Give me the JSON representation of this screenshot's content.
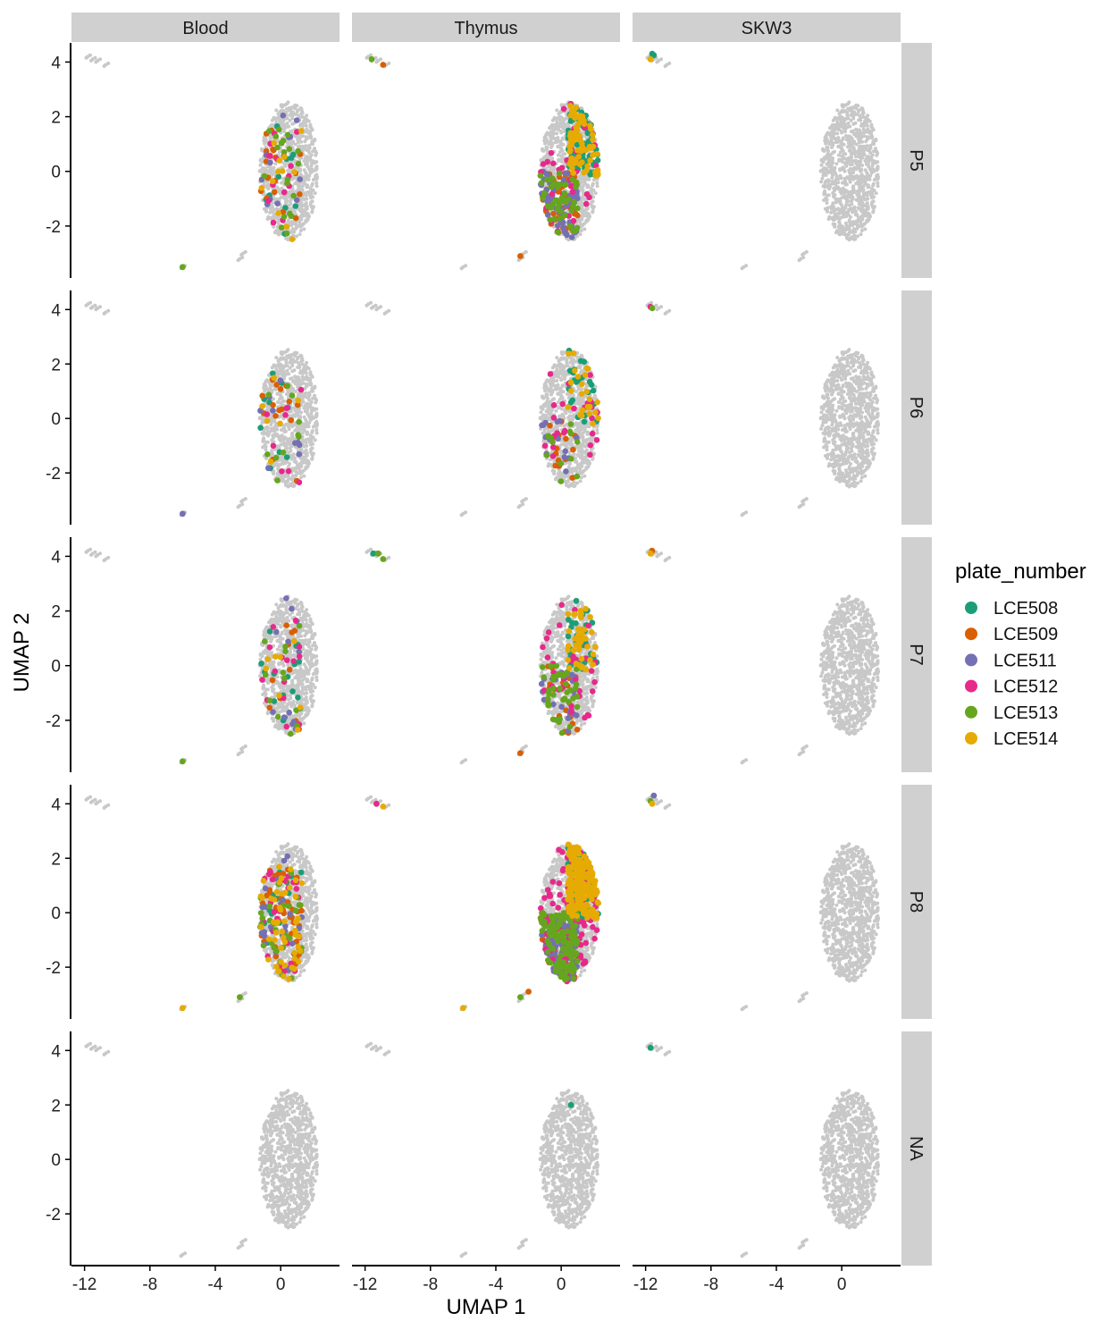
{
  "chart_data": {
    "type": "scatter",
    "title": "",
    "xlabel": "UMAP 1",
    "ylabel": "UMAP 2",
    "xlim": [
      -12.8,
      3.6
    ],
    "ylim": [
      -3.9,
      4.7
    ],
    "x_ticks": [
      -12,
      -8,
      -4,
      0
    ],
    "x_tick_labels": [
      "-12",
      "-8",
      "-4",
      "0"
    ],
    "y_ticks": [
      -2,
      0,
      2,
      4
    ],
    "y_tick_labels": [
      "-2",
      "0",
      "2",
      "4"
    ],
    "facet_columns": [
      "Blood",
      "Thymus",
      "SKW3"
    ],
    "facet_rows": [
      "P5",
      "P6",
      "P7",
      "P8",
      "NA"
    ],
    "grid": false,
    "legend": {
      "title": "plate_number",
      "position": "right",
      "entries": [
        {
          "name": "LCE508",
          "color": "#1b9e77"
        },
        {
          "name": "LCE509",
          "color": "#d95f02"
        },
        {
          "name": "LCE511",
          "color": "#7570b3"
        },
        {
          "name": "LCE512",
          "color": "#e7298a"
        },
        {
          "name": "LCE513",
          "color": "#66a61e"
        },
        {
          "name": "LCE514",
          "color": "#e6ab02"
        }
      ]
    },
    "background_color": "#c8c8c8",
    "background_clusters": [
      {
        "name": "main",
        "x_range": [
          -2.0,
          3.2
        ],
        "y_range": [
          -2.6,
          2.6
        ]
      },
      {
        "name": "top-left",
        "x": [
          -11.8,
          -11.5,
          -11.2,
          -10.7
        ],
        "y": [
          4.2,
          4.1,
          4.05,
          3.9
        ]
      },
      {
        "name": "bottom-left",
        "x": [
          -6.0
        ],
        "y": [
          -3.5
        ]
      },
      {
        "name": "bottom-mid",
        "x": [
          -2.5,
          -2.3
        ],
        "y": [
          -3.2,
          -3.0
        ]
      }
    ],
    "approx_colored_point_counts": {
      "Blood": {
        "P5": {
          "LCE508": 10,
          "LCE509": 18,
          "LCE511": 12,
          "LCE512": 15,
          "LCE513": 20,
          "LCE514": 12
        },
        "P6": {
          "LCE508": 8,
          "LCE509": 15,
          "LCE511": 10,
          "LCE512": 8,
          "LCE513": 10,
          "LCE514": 6
        },
        "P7": {
          "LCE508": 16,
          "LCE509": 10,
          "LCE511": 12,
          "LCE512": 15,
          "LCE513": 12,
          "LCE514": 8
        },
        "P8": {
          "LCE508": 15,
          "LCE509": 40,
          "LCE511": 25,
          "LCE512": 30,
          "LCE513": 30,
          "LCE514": 50
        },
        "NA": {}
      },
      "Thymus": {
        "P5": {
          "LCE508": 70,
          "LCE509": 60,
          "LCE511": 50,
          "LCE512": 40,
          "LCE513": 45,
          "LCE514": 70
        },
        "P6": {
          "LCE508": 25,
          "LCE509": 15,
          "LCE511": 15,
          "LCE512": 25,
          "LCE513": 12,
          "LCE514": 25
        },
        "P7": {
          "LCE508": 30,
          "LCE509": 20,
          "LCE511": 25,
          "LCE512": 35,
          "LCE513": 40,
          "LCE514": 40
        },
        "P8": {
          "LCE508": 80,
          "LCE509": 60,
          "LCE511": 120,
          "LCE512": 90,
          "LCE513": 120,
          "LCE514": 200
        },
        "NA": {
          "LCE508": 1
        }
      },
      "SKW3": {
        "P5": {
          "LCE508": 3,
          "LCE514": 1
        },
        "P6": {
          "LCE512": 2,
          "LCE513": 1
        },
        "P7": {
          "LCE509": 1,
          "LCE514": 1
        },
        "P8": {
          "LCE511": 2,
          "LCE513": 1,
          "LCE514": 1
        },
        "NA": {
          "LCE508": 1
        }
      }
    },
    "colored_outliers": [
      {
        "col": "Blood",
        "row": "P5",
        "points": [
          {
            "x": -6.0,
            "y": -3.5,
            "plate": "LCE513"
          }
        ]
      },
      {
        "col": "Blood",
        "row": "P6",
        "points": [
          {
            "x": -6.0,
            "y": -3.5,
            "plate": "LCE511"
          }
        ]
      },
      {
        "col": "Blood",
        "row": "P7",
        "points": [
          {
            "x": -6.0,
            "y": -3.5,
            "plate": "LCE513"
          }
        ]
      },
      {
        "col": "Blood",
        "row": "P8",
        "points": [
          {
            "x": -6.0,
            "y": -3.5,
            "plate": "LCE514"
          },
          {
            "x": -2.5,
            "y": -3.1,
            "plate": "LCE513"
          }
        ]
      },
      {
        "col": "Thymus",
        "row": "P5",
        "points": [
          {
            "x": -11.6,
            "y": 4.1,
            "plate": "LCE513"
          },
          {
            "x": -10.9,
            "y": 3.9,
            "plate": "LCE509"
          },
          {
            "x": -2.5,
            "y": -3.1,
            "plate": "LCE509"
          }
        ]
      },
      {
        "col": "Thymus",
        "row": "P7",
        "points": [
          {
            "x": -11.5,
            "y": 4.1,
            "plate": "LCE508"
          },
          {
            "x": -11.2,
            "y": 4.1,
            "plate": "LCE513"
          },
          {
            "x": -10.9,
            "y": 3.9,
            "plate": "LCE513"
          },
          {
            "x": -2.5,
            "y": -3.2,
            "plate": "LCE509"
          }
        ]
      },
      {
        "col": "Thymus",
        "row": "P8",
        "points": [
          {
            "x": -11.3,
            "y": 4.0,
            "plate": "LCE512"
          },
          {
            "x": -10.9,
            "y": 3.9,
            "plate": "LCE514"
          },
          {
            "x": -6.0,
            "y": -3.5,
            "plate": "LCE514"
          },
          {
            "x": -2.5,
            "y": -3.1,
            "plate": "LCE513"
          },
          {
            "x": -2.0,
            "y": -2.9,
            "plate": "LCE509"
          }
        ]
      },
      {
        "col": "Thymus",
        "row": "NA",
        "points": [
          {
            "x": 0.6,
            "y": 2.0,
            "plate": "LCE508"
          }
        ]
      },
      {
        "col": "SKW3",
        "row": "P5",
        "points": [
          {
            "x": -11.6,
            "y": 4.3,
            "plate": "LCE508"
          },
          {
            "x": -11.5,
            "y": 4.25,
            "plate": "LCE508"
          },
          {
            "x": -11.7,
            "y": 4.1,
            "plate": "LCE514"
          }
        ]
      },
      {
        "col": "SKW3",
        "row": "P6",
        "points": [
          {
            "x": -11.7,
            "y": 4.1,
            "plate": "LCE512"
          },
          {
            "x": -11.6,
            "y": 4.05,
            "plate": "LCE513"
          }
        ]
      },
      {
        "col": "SKW3",
        "row": "P7",
        "points": [
          {
            "x": -11.6,
            "y": 4.2,
            "plate": "LCE509"
          },
          {
            "x": -11.7,
            "y": 4.1,
            "plate": "LCE514"
          }
        ]
      },
      {
        "col": "SKW3",
        "row": "P8",
        "points": [
          {
            "x": -11.5,
            "y": 4.3,
            "plate": "LCE511"
          },
          {
            "x": -11.7,
            "y": 4.1,
            "plate": "LCE513"
          },
          {
            "x": -11.6,
            "y": 4.0,
            "plate": "LCE514"
          }
        ]
      },
      {
        "col": "SKW3",
        "row": "NA",
        "points": [
          {
            "x": -11.7,
            "y": 4.1,
            "plate": "LCE508"
          }
        ]
      }
    ]
  }
}
